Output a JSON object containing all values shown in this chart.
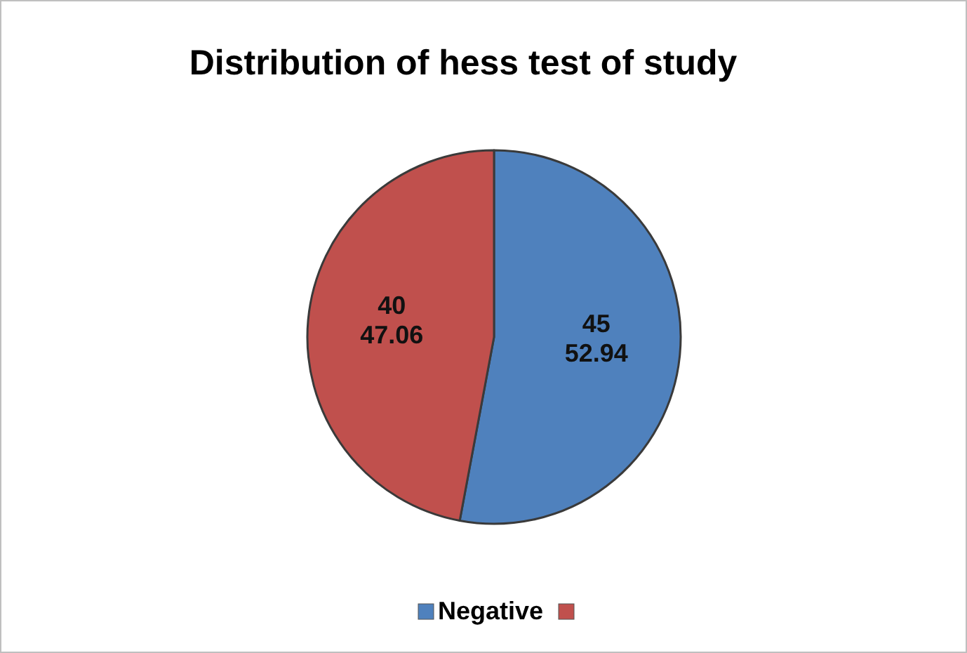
{
  "chart_data": {
    "type": "pie",
    "title": "Distribution of hess test of study",
    "categories": [
      "Negative",
      null
    ],
    "values": [
      45,
      40
    ],
    "colors": [
      "#4f81bd",
      "#c0504d"
    ],
    "value_labels": [
      "45\n52.94",
      "40\n47.06"
    ],
    "legend": "bottom"
  }
}
